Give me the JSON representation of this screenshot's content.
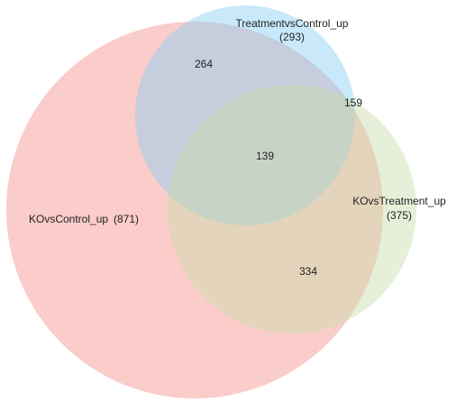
{
  "sets": [
    {
      "id": "ko_vs_control",
      "name": "KOvsControl_up",
      "total_text": "(871)",
      "color": "#f48f8a"
    },
    {
      "id": "treatment_vs_control",
      "name": "TreatmentvsControl_up",
      "total_text": "(293)",
      "color": "#87cff3"
    },
    {
      "id": "ko_vs_treatment",
      "name": "KOvsTreatment_up",
      "total_text": "(375)",
      "color": "#c7dea8"
    }
  ],
  "regions": [
    {
      "sets": [
        "ko_vs_control",
        "treatment_vs_control"
      ],
      "value": "264"
    },
    {
      "sets": [
        "treatment_vs_control",
        "ko_vs_treatment"
      ],
      "value": "159"
    },
    {
      "sets": [
        "ko_vs_control",
        "treatment_vs_control",
        "ko_vs_treatment"
      ],
      "value": "139"
    },
    {
      "sets": [
        "ko_vs_control",
        "ko_vs_treatment"
      ],
      "value": "334"
    }
  ]
}
